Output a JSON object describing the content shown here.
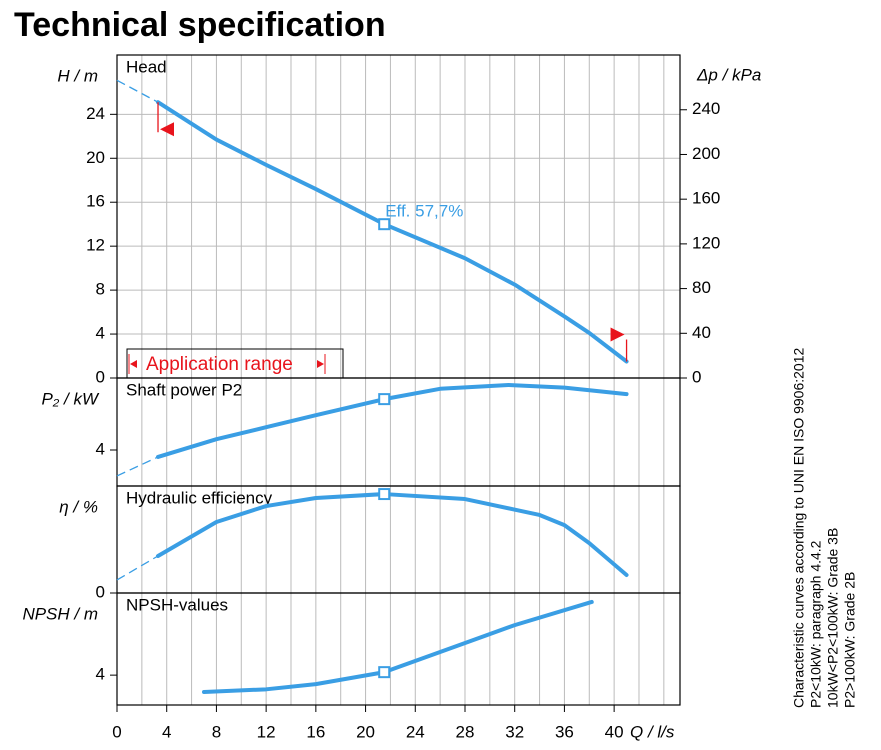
{
  "title": "Technical specification",
  "notes": [
    "Characteristic curves according to UNI EN ISO 9906:2012",
    "P2<10kW:  paragraph 4.4.2",
    "10kW<P2<100kW: Grade 3B",
    "P2>100kW: Grade 2B"
  ],
  "x_axis": {
    "label": "Q  / l/s",
    "xlim": [
      0,
      45.3
    ],
    "xticks": [
      0,
      4,
      8,
      12,
      16,
      20,
      24,
      28,
      32,
      36,
      40
    ],
    "minor_xticks": [
      2,
      6,
      10,
      14,
      18,
      22,
      26,
      30,
      34,
      38,
      42,
      44
    ]
  },
  "application_range": {
    "label": "Application range",
    "x": [
      3.3,
      41
    ]
  },
  "duty_point": {
    "x": 21.5,
    "label": "Eff.  57,7%"
  },
  "chart_data": [
    {
      "type": "line",
      "title": "Head",
      "ylabel": "H  / m",
      "y2label": "Δp  / kPa",
      "color": "#3a9ee4",
      "x": [
        3.3,
        8,
        12,
        16,
        21.5,
        28,
        32,
        36,
        38,
        41
      ],
      "values": [
        25.1,
        21.7,
        19.4,
        17.2,
        14.0,
        10.9,
        8.5,
        5.6,
        4.1,
        1.5
      ],
      "extension_x": [
        0,
        3.3
      ],
      "extension_values": [
        27.1,
        25.1
      ],
      "ylim": [
        0,
        29.4
      ],
      "yticks": [
        0,
        4,
        8,
        12,
        16,
        20,
        24
      ],
      "y2lim": [
        0,
        289
      ],
      "y2ticks": [
        0,
        40,
        80,
        120,
        160,
        200,
        240
      ],
      "grid": true
    },
    {
      "type": "line",
      "title": "Shaft power P2",
      "ylabel": "P₂ / kW",
      "color": "#3a9ee4",
      "x": [
        3.3,
        8,
        12,
        16,
        21.5,
        26,
        31.5,
        36,
        41
      ],
      "values": [
        3.71,
        4.45,
        4.95,
        5.45,
        6.12,
        6.55,
        6.71,
        6.6,
        6.33
      ],
      "extension_x": [
        0,
        3.3
      ],
      "extension_values": [
        2.92,
        3.71
      ],
      "ylim": [
        2.5,
        7
      ],
      "yticks": [
        4
      ],
      "grid": false
    },
    {
      "type": "line",
      "title": "Hydraulic efficiency",
      "ylabel": "η / %",
      "color": "#3a9ee4",
      "x": [
        3.3,
        8,
        12,
        16,
        21.5,
        28,
        34,
        36,
        38,
        41
      ],
      "values": [
        21.6,
        41.4,
        50.7,
        55.4,
        57.7,
        54.8,
        45.5,
        39.6,
        29.1,
        10.5
      ],
      "extension_x": [
        0,
        3.3
      ],
      "extension_values": [
        7.6,
        21.6
      ],
      "ylim": [
        0,
        62.4
      ],
      "yticks": [
        0
      ],
      "grid": false
    },
    {
      "type": "line",
      "title": "NPSH-values",
      "ylabel": "NPSH  / m",
      "color": "#3a9ee4",
      "x": [
        7,
        12,
        16,
        21.5,
        26,
        32,
        38.2
      ],
      "values": [
        1.74,
        2.1,
        2.8,
        4.4,
        7.1,
        10.7,
        13.8
      ],
      "ylim": [
        0,
        15
      ],
      "yticks": [
        4
      ],
      "grid": false
    }
  ]
}
